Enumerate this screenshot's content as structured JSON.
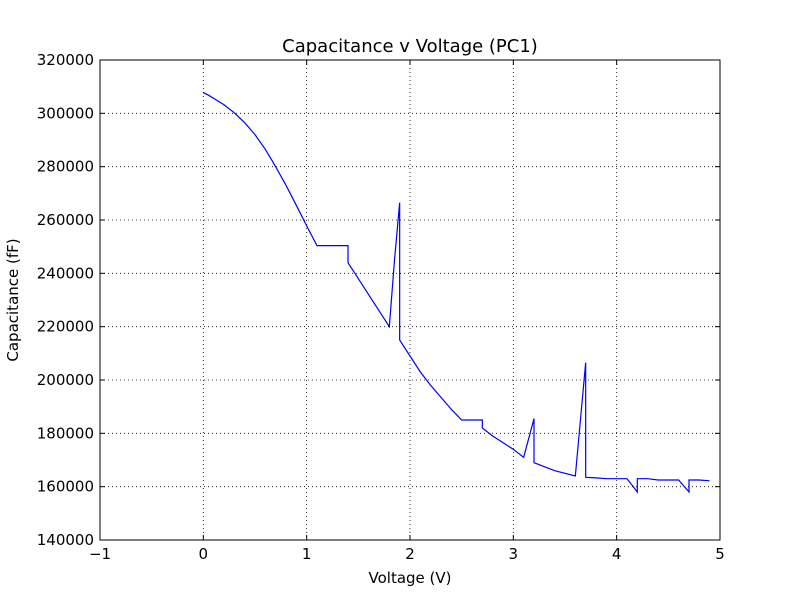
{
  "chart_data": {
    "type": "line",
    "title": "Capacitance v Voltage (PC1)",
    "xlabel": "Voltage (V)",
    "ylabel": "Capacitance (fF)",
    "xlim": [
      -1,
      5
    ],
    "ylim": [
      140000,
      320000
    ],
    "xticks": [
      -1,
      0,
      1,
      2,
      3,
      4,
      5
    ],
    "xtick_labels": [
      "−1",
      "0",
      "1",
      "2",
      "3",
      "4",
      "5"
    ],
    "yticks": [
      140000,
      160000,
      180000,
      200000,
      220000,
      240000,
      260000,
      280000,
      300000,
      320000
    ],
    "ytick_labels": [
      "140000",
      "160000",
      "180000",
      "200000",
      "220000",
      "240000",
      "260000",
      "280000",
      "300000",
      "320000"
    ],
    "grid": true,
    "series": [
      {
        "color": "#0000ff",
        "x": [
          0,
          0.05,
          0.1,
          0.2,
          0.3,
          0.4,
          0.5,
          0.6,
          0.7,
          0.8,
          0.9,
          1.0,
          1.1,
          1.2,
          1.3,
          1.4,
          1.4,
          1.5,
          1.6,
          1.7,
          1.8,
          1.85,
          1.9,
          1.9,
          2.0,
          2.1,
          2.2,
          2.3,
          2.4,
          2.5,
          2.6,
          2.7,
          2.7,
          2.8,
          2.9,
          3.0,
          3.1,
          3.2,
          3.2,
          3.3,
          3.4,
          3.5,
          3.6,
          3.7,
          3.7,
          3.8,
          3.9,
          4.0,
          4.1,
          4.2,
          4.2,
          4.3,
          4.4,
          4.5,
          4.6,
          4.7,
          4.7,
          4.8,
          4.9
        ],
        "y": [
          307800,
          306800,
          305600,
          303200,
          300200,
          296500,
          292000,
          286500,
          280000,
          273000,
          265500,
          257800,
          250400,
          250400,
          250400,
          250400,
          244000,
          238000,
          232000,
          226000,
          220000,
          245000,
          266500,
          215000,
          209000,
          203000,
          198000,
          193500,
          189000,
          185000,
          185000,
          185000,
          182000,
          179000,
          176500,
          174000,
          171000,
          185500,
          169000,
          167500,
          166000,
          165000,
          164000,
          206500,
          163500,
          163300,
          163000,
          163000,
          163000,
          158000,
          163000,
          163000,
          162500,
          162500,
          162500,
          158000,
          162500,
          162500,
          162200
        ]
      }
    ]
  }
}
